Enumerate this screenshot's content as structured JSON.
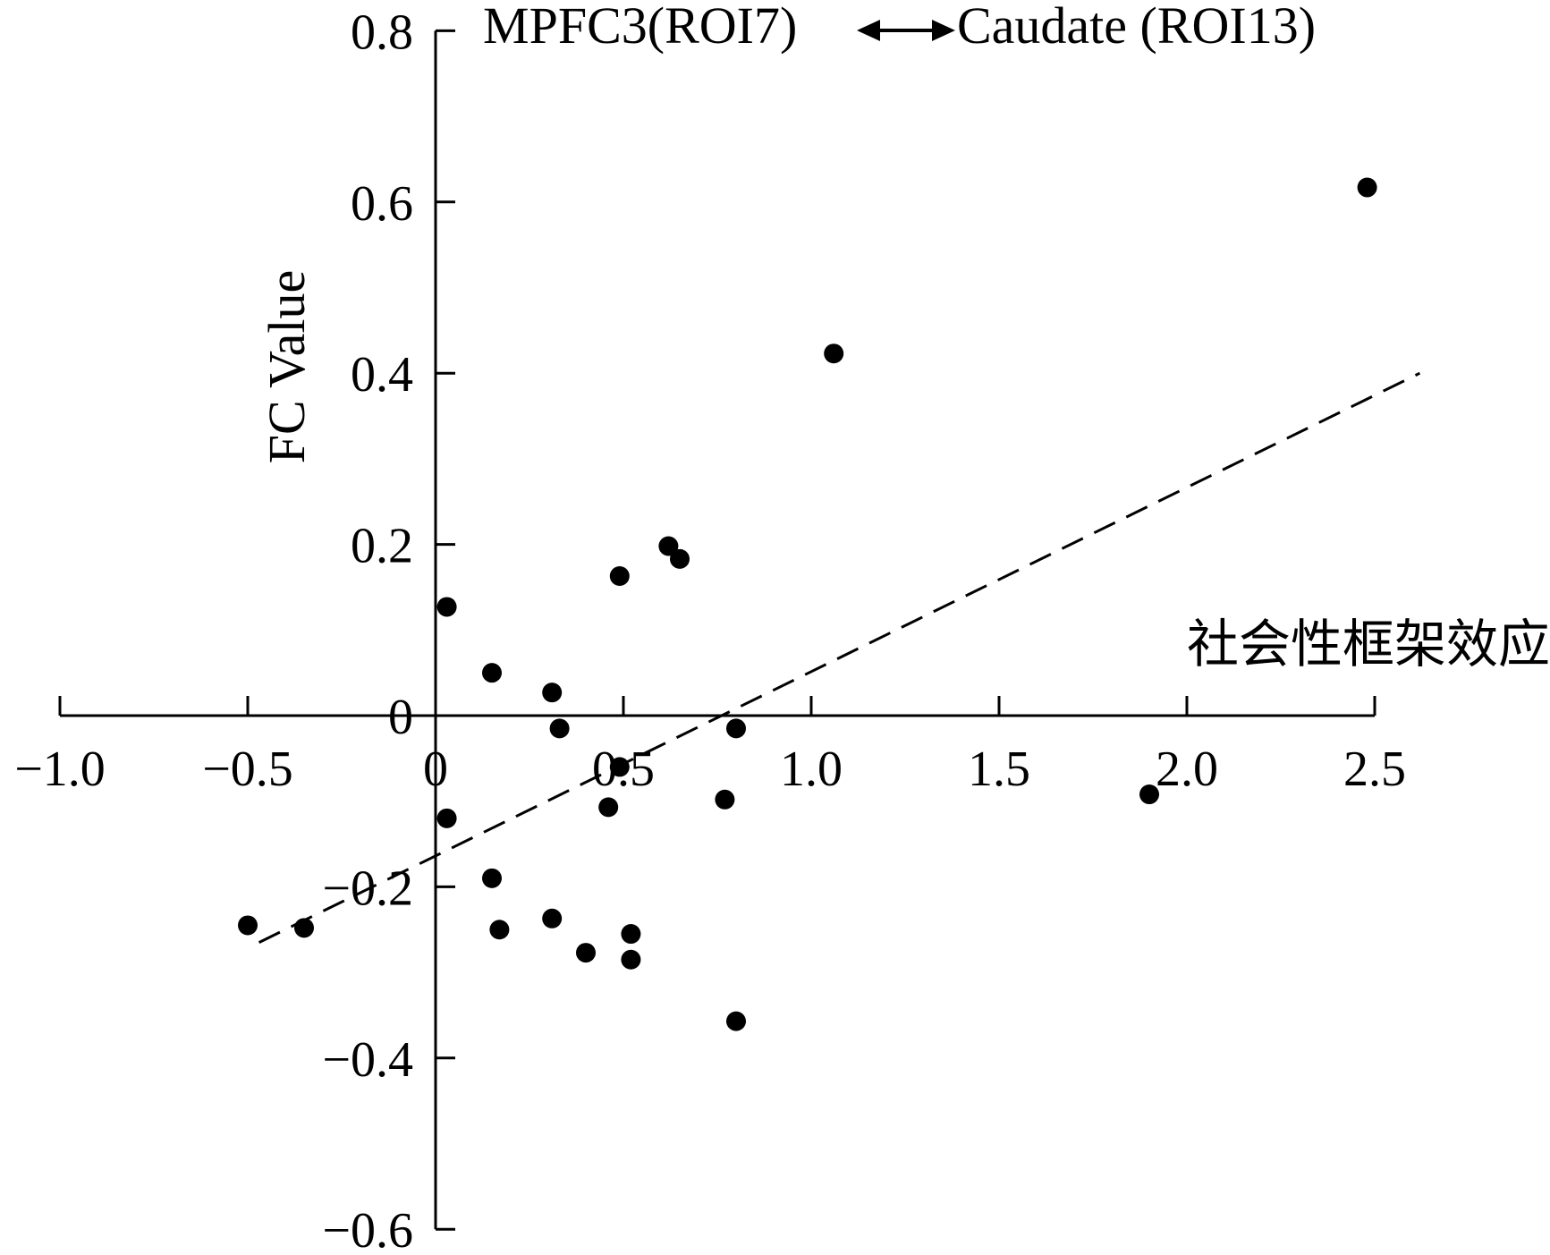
{
  "chart_data": {
    "type": "scatter",
    "title": "MPFC3 (ROI7)←→Caudate (ROI13)",
    "title_left": "MPFC3",
    "title_mid": "(ROI7)",
    "title_right": "Caudate (ROI13)",
    "xlabel": "社会性框架效应",
    "ylabel": "FC Value",
    "xlim": [
      -1.0,
      2.5
    ],
    "ylim": [
      -0.6,
      0.8
    ],
    "x_ticks": [
      -1.0,
      -0.5,
      0,
      0.5,
      1.0,
      1.5,
      2.0,
      2.5
    ],
    "x_tick_labels": [
      "−1.0",
      "−0.5",
      "0",
      "0.5",
      "1.0",
      "1.5",
      "2.0",
      "2.5"
    ],
    "y_ticks": [
      -0.6,
      -0.4,
      -0.2,
      0,
      0.2,
      0.4,
      0.6,
      0.8
    ],
    "y_tick_labels": [
      "−0.6",
      "−0.4",
      "−0.2",
      "0",
      "0.2",
      "0.4",
      "0.6",
      "0.8"
    ],
    "grid": false,
    "series": [
      {
        "points": [
          {
            "x": -0.5,
            "y": -0.245
          },
          {
            "x": -0.35,
            "y": -0.248
          },
          {
            "x": 0.03,
            "y": 0.127
          },
          {
            "x": 0.03,
            "y": -0.12
          },
          {
            "x": 0.15,
            "y": 0.05
          },
          {
            "x": 0.15,
            "y": -0.19
          },
          {
            "x": 0.17,
            "y": -0.25
          },
          {
            "x": 0.31,
            "y": 0.027
          },
          {
            "x": 0.31,
            "y": -0.237
          },
          {
            "x": 0.33,
            "y": -0.015
          },
          {
            "x": 0.4,
            "y": -0.277
          },
          {
            "x": 0.46,
            "y": -0.107
          },
          {
            "x": 0.49,
            "y": 0.163
          },
          {
            "x": 0.49,
            "y": -0.06
          },
          {
            "x": 0.52,
            "y": -0.255
          },
          {
            "x": 0.52,
            "y": -0.285
          },
          {
            "x": 0.62,
            "y": 0.198
          },
          {
            "x": 0.65,
            "y": 0.183
          },
          {
            "x": 0.77,
            "y": -0.098
          },
          {
            "x": 0.8,
            "y": -0.015
          },
          {
            "x": 0.8,
            "y": -0.357
          },
          {
            "x": 1.06,
            "y": 0.423
          },
          {
            "x": 1.9,
            "y": -0.092
          },
          {
            "x": 2.48,
            "y": 0.617
          }
        ]
      }
    ],
    "trendline": {
      "style": "dashed",
      "x": [
        -0.47,
        2.62
      ],
      "y": [
        -0.265,
        0.4
      ]
    },
    "colors": {
      "points": "#000000",
      "axes": "#000000",
      "trendline": "#000000"
    }
  }
}
